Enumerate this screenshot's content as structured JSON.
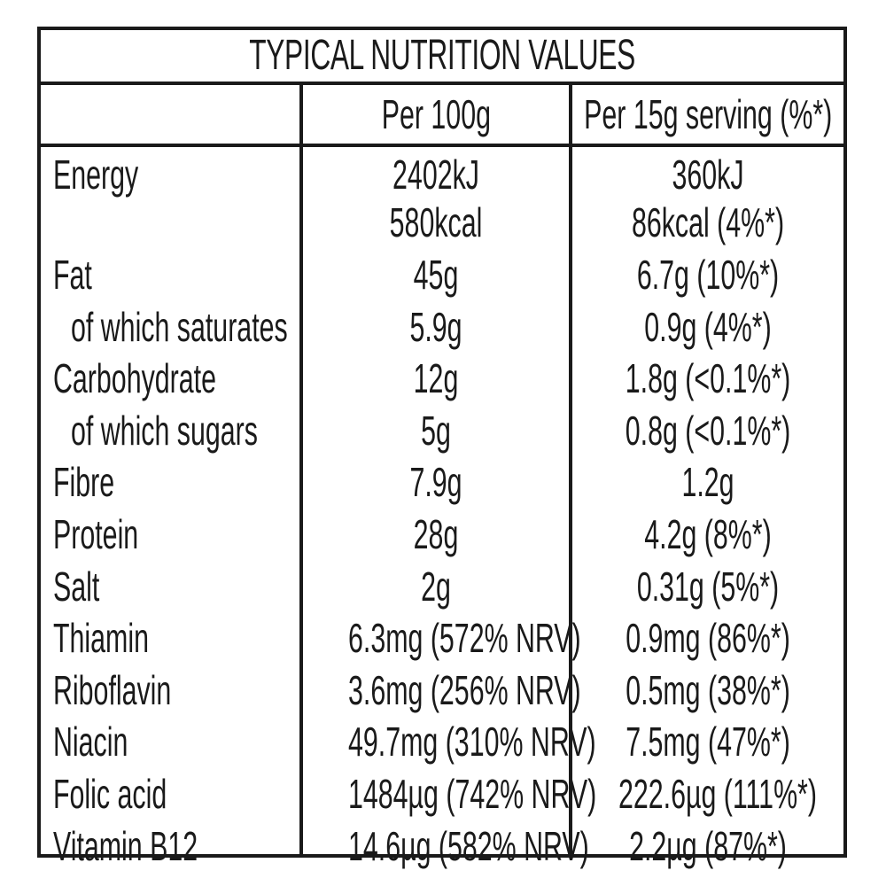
{
  "title": "TYPICAL NUTRITION VALUES",
  "headers": {
    "col1": "",
    "col2": "Per 100g",
    "col3": "Per 15g serving (%*)"
  },
  "rows": [
    {
      "name": "Energy",
      "per100": "2402kJ",
      "per100_2": "580kcal",
      "serving": "360kJ",
      "serving_2": "86kcal (4%*)"
    },
    {
      "name": "Fat",
      "per100": "45g",
      "serving": "6.7g (10%*)"
    },
    {
      "name": "of which saturates",
      "per100": "5.9g",
      "serving": "0.9g (4%*)"
    },
    {
      "name": "Carbohydrate",
      "per100": "12g",
      "serving": "1.8g (<0.1%*)"
    },
    {
      "name": "of which sugars",
      "per100": "5g",
      "serving": "0.8g (<0.1%*)"
    },
    {
      "name": "Fibre",
      "per100": "7.9g",
      "serving": "1.2g"
    },
    {
      "name": "Protein",
      "per100": "28g",
      "serving": "4.2g (8%*)"
    },
    {
      "name": "Salt",
      "per100": "2g",
      "serving": "0.31g (5%*)"
    },
    {
      "name": "Thiamin",
      "per100": "6.3mg (572% NRV)",
      "serving": "0.9mg (86%*)"
    },
    {
      "name": "Riboflavin",
      "per100": "3.6mg (256% NRV)",
      "serving": "0.5mg (38%*)"
    },
    {
      "name": "Niacin",
      "per100": "49.7mg (310% NRV)",
      "serving": "7.5mg (47%*)"
    },
    {
      "name": "Folic acid",
      "per100": "1484µg (742% NRV)",
      "serving": "222.6µg (111%*)"
    },
    {
      "name": "Vitamin B12",
      "per100": "14.6µg (582% NRV)",
      "serving": "2.2µg (87%*)"
    }
  ]
}
